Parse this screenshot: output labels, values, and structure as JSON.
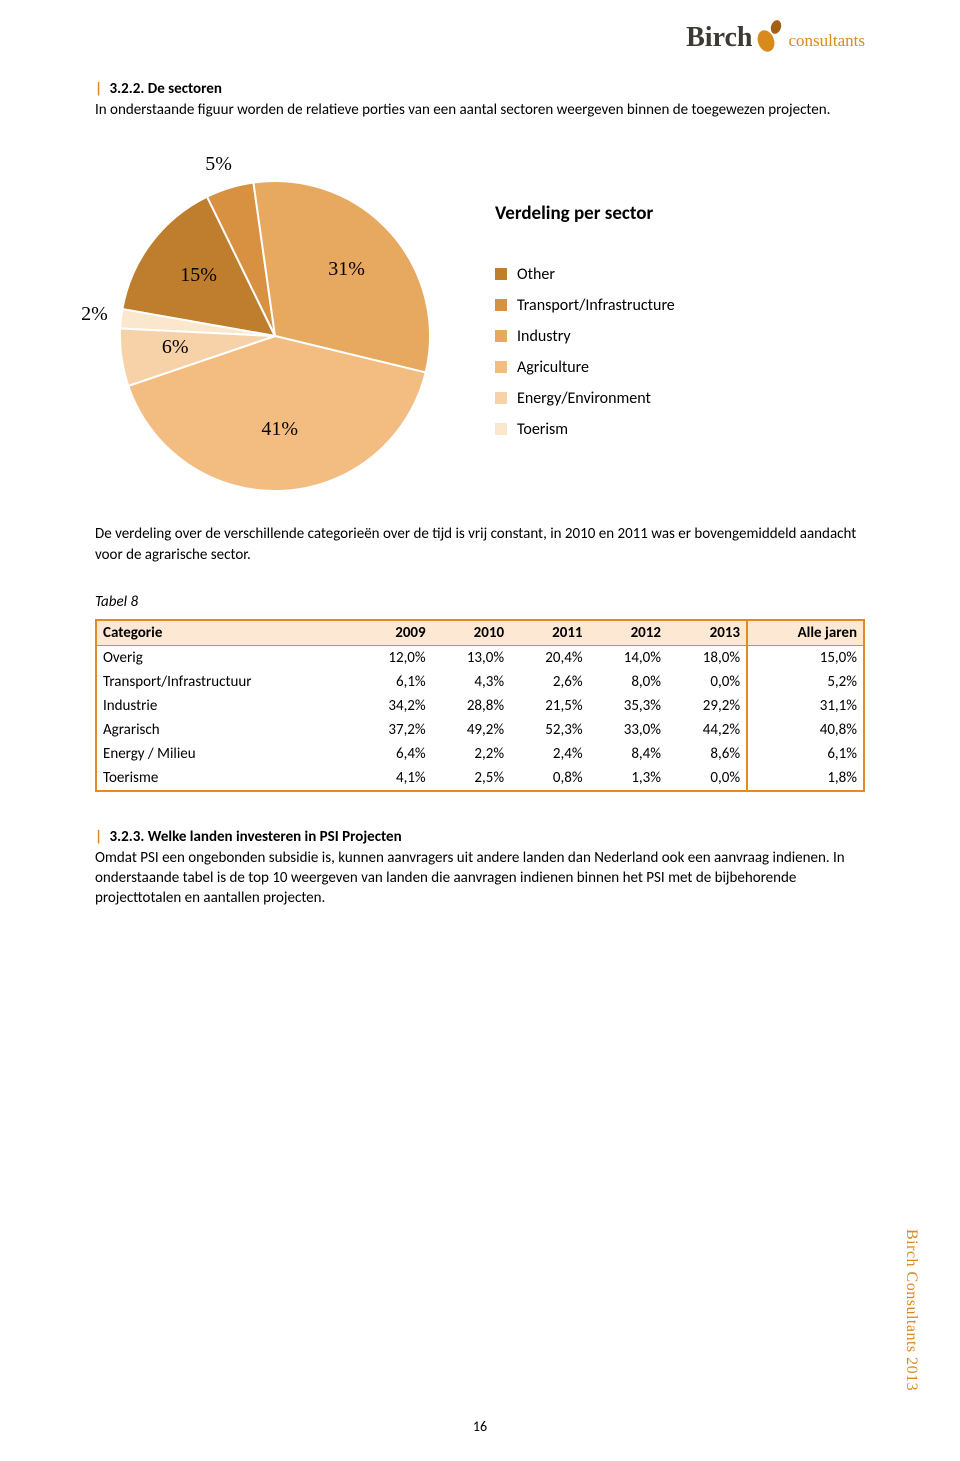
{
  "logo": {
    "brand": "Birch",
    "suffix": "consultants"
  },
  "section1": {
    "bar": "|",
    "number": "3.2.2.",
    "title": "De sectoren",
    "paragraph": "In onderstaande figuur worden de relatieve porties van een aantal sectoren weergeven binnen de toegewezen projecten."
  },
  "chart": {
    "type": "pie",
    "title": "Verdeling per sector",
    "background_color": "#ffffff",
    "label_font": "Times New Roman",
    "label_fontsize": 20,
    "title_fontsize": 19,
    "legend_fontsize": 16,
    "start_angle_deg": -170,
    "direction": "clockwise",
    "slices": [
      {
        "name": "Other",
        "value": 15,
        "label": "15%",
        "color": "#bf7d2e"
      },
      {
        "name": "Transport/Infrastructure",
        "value": 5,
        "label": "5%",
        "color": "#d79140"
      },
      {
        "name": "Industry",
        "value": 31,
        "label": "31%",
        "color": "#e7a85f"
      },
      {
        "name": "Agriculture",
        "value": 41,
        "label": "41%",
        "color": "#f3bd82"
      },
      {
        "name": "Energy/Environment",
        "value": 6,
        "label": "6%",
        "color": "#f7d2a8"
      },
      {
        "name": "Toerism",
        "value": 2,
        "label": "2%",
        "color": "#fbe7cd"
      }
    ]
  },
  "paragraph2": "De verdeling over de verschillende categorieën over de tijd is vrij constant, in 2010 en 2011 was er bovengemiddeld aandacht voor de agrarische sector.",
  "table": {
    "caption": "Tabel 8",
    "header_bg": "#fde8d4",
    "border_color": "#e08b26",
    "columns": [
      "Categorie",
      "2009",
      "2010",
      "2011",
      "2012",
      "2013",
      "Alle jaren"
    ],
    "rows": [
      [
        "Overig",
        "12,0%",
        "13,0%",
        "20,4%",
        "14,0%",
        "18,0%",
        "15,0%"
      ],
      [
        "Transport/Infrastructuur",
        "6,1%",
        "4,3%",
        "2,6%",
        "8,0%",
        "0,0%",
        "5,2%"
      ],
      [
        "Industrie",
        "34,2%",
        "28,8%",
        "21,5%",
        "35,3%",
        "29,2%",
        "31,1%"
      ],
      [
        "Agrarisch",
        "37,2%",
        "49,2%",
        "52,3%",
        "33,0%",
        "44,2%",
        "40,8%"
      ],
      [
        "Energy / Milieu",
        "6,4%",
        "2,2%",
        "2,4%",
        "8,4%",
        "8,6%",
        "6,1%"
      ],
      [
        "Toerisme",
        "4,1%",
        "2,5%",
        "0,8%",
        "1,3%",
        "0,0%",
        "1,8%"
      ]
    ]
  },
  "section2": {
    "bar": "|",
    "number": "3.2.3.",
    "title": "Welke landen investeren in PSI Projecten",
    "paragraph": "Omdat PSI een ongebonden subsidie is, kunnen aanvragers uit andere landen dan Nederland ook een aanvraag indienen. In onderstaande tabel is de top 10 weergeven van landen die aanvragen indienen binnen het PSI met de bijbehorende projecttotalen en aantallen projecten."
  },
  "footer": {
    "page_number": "16",
    "side_label": "Birch Consultants 2013"
  }
}
